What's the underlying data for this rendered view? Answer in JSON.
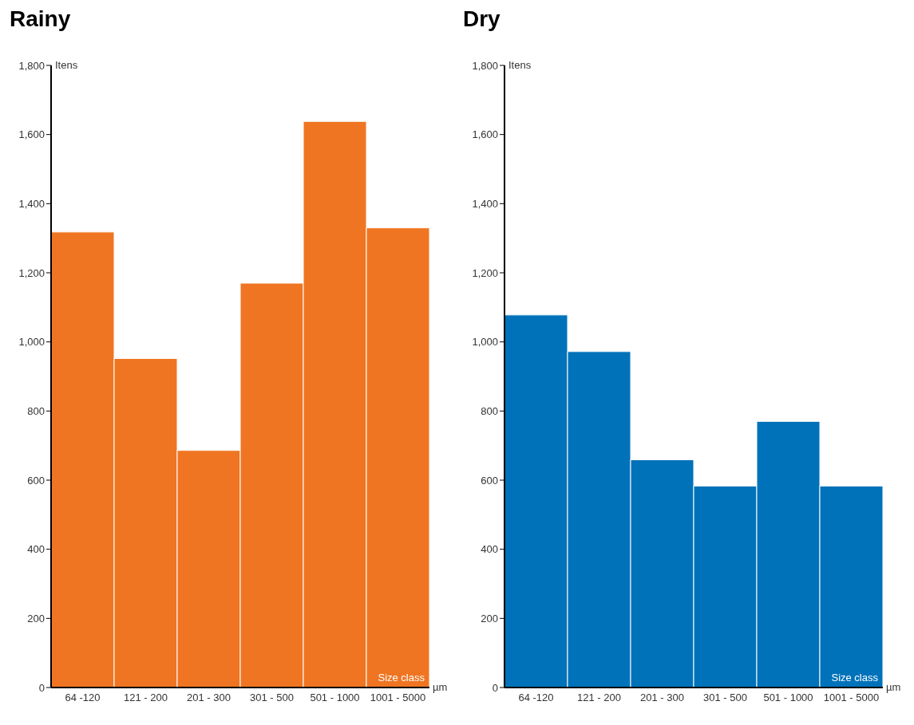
{
  "chart_data": [
    {
      "type": "bar",
      "title": "Rainy",
      "xlabel": "Size class",
      "ylabel": "Itens",
      "annotations": [
        "µm"
      ],
      "categories": [
        "64 -120",
        "121 - 200",
        "201 - 300",
        "301 - 500",
        "501 - 1000",
        "1001 - 5000"
      ],
      "series": [
        {
          "color": "#f07522",
          "values": [
            1318,
            952,
            686,
            1170,
            1638,
            1330
          ]
        }
      ],
      "ylim": [
        0,
        1800
      ],
      "yticks": [
        0,
        {
          "value": 200,
          "label": "200"
        },
        {
          "value": 400,
          "label": "400"
        },
        {
          "value": 600,
          "label": "600"
        },
        {
          "value": 800,
          "label": "800"
        },
        {
          "value": 1000,
          "label": "1,000"
        },
        {
          "value": 1200,
          "label": "1,200"
        },
        {
          "value": 1400,
          "label": "1,400"
        },
        {
          "value": 1600,
          "label": "1,600"
        },
        {
          "value": 1800,
          "label": "1,800"
        }
      ],
      "grid": false,
      "legend": false
    },
    {
      "type": "bar",
      "title": "Dry",
      "xlabel": "Size class",
      "ylabel": "Itens",
      "annotations": [
        "µm"
      ],
      "categories": [
        "64 -120",
        "121 - 200",
        "201 - 300",
        "301 - 500",
        "501 - 1000",
        "1001 - 5000"
      ],
      "series": [
        {
          "color": "#0072b9",
          "values": [
            1078,
            972,
            659,
            583,
            770,
            583
          ]
        }
      ],
      "ylim": [
        0,
        1800
      ],
      "yticks": [
        0,
        {
          "value": 200,
          "label": "200"
        },
        {
          "value": 400,
          "label": "400"
        },
        {
          "value": 600,
          "label": "600"
        },
        {
          "value": 800,
          "label": "800"
        },
        {
          "value": 1000,
          "label": "1,000"
        },
        {
          "value": 1200,
          "label": "1,200"
        },
        {
          "value": 1400,
          "label": "1,400"
        },
        {
          "value": 1600,
          "label": "1,600"
        },
        {
          "value": 1800,
          "label": "1,800"
        }
      ],
      "grid": false,
      "legend": false
    }
  ]
}
